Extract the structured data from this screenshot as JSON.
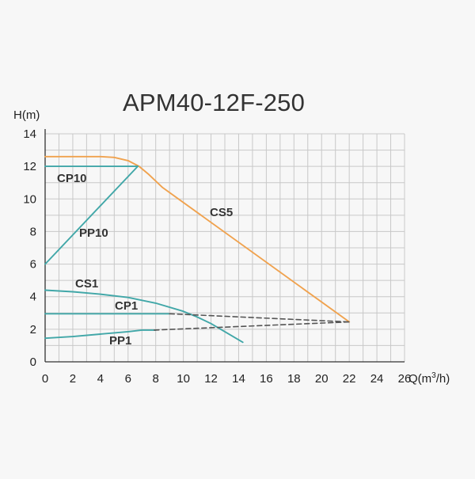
{
  "chart_data": {
    "type": "line",
    "title": "APM40-12F-250",
    "ylabel": "H(m)",
    "xlabel_prefix": "Q(m",
    "xlabel_sup": "3",
    "xlabel_suffix": "/h)",
    "xlim": [
      0,
      26
    ],
    "ylim": [
      0,
      14
    ],
    "x_ticks": [
      0,
      2,
      4,
      6,
      8,
      10,
      12,
      14,
      16,
      18,
      20,
      22,
      24,
      26
    ],
    "y_ticks": [
      0,
      2,
      4,
      6,
      8,
      10,
      12,
      14
    ],
    "grid": true,
    "colors": {
      "orange": "#f0a24e",
      "teal": "#41a7a8",
      "dashed": "#555555",
      "grid": "#c8c8c8"
    },
    "series": [
      {
        "name": "CS5",
        "color": "#f0a24e",
        "dashed": false,
        "x": [
          0,
          2,
          4,
          5,
          6,
          6.8,
          7.5,
          8.5,
          22
        ],
        "y": [
          12.6,
          12.6,
          12.6,
          12.55,
          12.35,
          12.0,
          11.5,
          10.7,
          2.45
        ]
      },
      {
        "name": "CP10",
        "color": "#41a7a8",
        "dashed": false,
        "x": [
          0,
          6.7
        ],
        "y": [
          12.0,
          12.0
        ]
      },
      {
        "name": "PP10",
        "color": "#41a7a8",
        "dashed": false,
        "x": [
          0,
          6.7
        ],
        "y": [
          6.0,
          12.0
        ]
      },
      {
        "name": "CS1",
        "color": "#41a7a8",
        "dashed": false,
        "x": [
          0,
          2,
          4,
          6,
          8,
          10,
          11,
          12,
          13,
          14.3
        ],
        "y": [
          4.4,
          4.3,
          4.15,
          3.95,
          3.6,
          3.1,
          2.75,
          2.35,
          1.85,
          1.2
        ]
      },
      {
        "name": "CP1",
        "color": "#41a7a8",
        "dashed": false,
        "x": [
          0,
          9
        ],
        "y": [
          2.95,
          2.95
        ]
      },
      {
        "name": "PP1",
        "color": "#41a7a8",
        "dashed": false,
        "x": [
          0,
          2,
          4,
          6,
          7,
          8
        ],
        "y": [
          1.45,
          1.55,
          1.7,
          1.85,
          1.95,
          1.95
        ]
      },
      {
        "name": "",
        "color": "#555555",
        "dashed": true,
        "x": [
          9,
          22
        ],
        "y": [
          2.95,
          2.45
        ]
      },
      {
        "name": "",
        "color": "#555555",
        "dashed": true,
        "x": [
          7.9,
          22
        ],
        "y": [
          1.95,
          2.45
        ]
      }
    ]
  }
}
